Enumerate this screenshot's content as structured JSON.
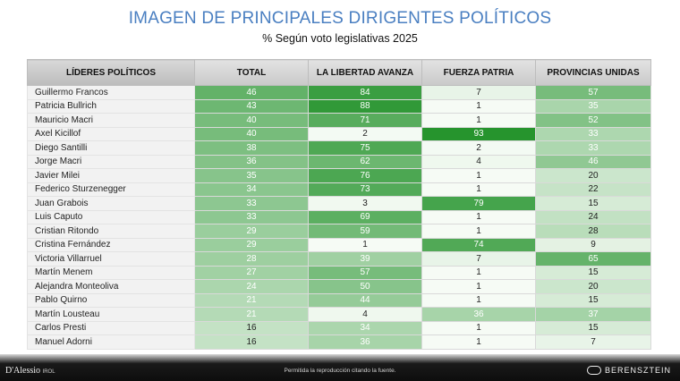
{
  "title": "IMAGEN DE PRINCIPALES DIRIGENTES POLÍTICOS",
  "subtitle": "% Según voto legislativas 2025",
  "headers": [
    "LÍDERES POLÍTICOS",
    "TOTAL",
    "LA LIBERTAD AVANZA",
    "FUERZA PATRIA",
    "PROVINCIAS UNIDAS"
  ],
  "rows": [
    {
      "name": "Guillermo Francos",
      "total": "46",
      "lla": "84",
      "fp": "7",
      "pu": "57"
    },
    {
      "name": "Patricia Bullrich",
      "total": "43",
      "lla": "88",
      "fp": "1",
      "pu": "35"
    },
    {
      "name": "Mauricio Macri",
      "total": "40",
      "lla": "71",
      "fp": "1",
      "pu": "52"
    },
    {
      "name": "Axel Kicillof",
      "total": "40",
      "lla": "2",
      "fp": "93",
      "pu": "33"
    },
    {
      "name": "Diego Santilli",
      "total": "38",
      "lla": "75",
      "fp": "2",
      "pu": "33"
    },
    {
      "name": "Jorge Macri",
      "total": "36",
      "lla": "62",
      "fp": "4",
      "pu": "46"
    },
    {
      "name": "Javier Milei",
      "total": "35",
      "lla": "76",
      "fp": "1",
      "pu": "20"
    },
    {
      "name": "Federico Sturzenegger",
      "total": "34",
      "lla": "73",
      "fp": "1",
      "pu": "22"
    },
    {
      "name": "Juan Grabois",
      "total": "33",
      "lla": "3",
      "fp": "79",
      "pu": "15"
    },
    {
      "name": "Luis Caputo",
      "total": "33",
      "lla": "69",
      "fp": "1",
      "pu": "24"
    },
    {
      "name": "Cristian Ritondo",
      "total": "29",
      "lla": "59",
      "fp": "1",
      "pu": "28"
    },
    {
      "name": "Cristina Fernández",
      "total": "29",
      "lla": "1",
      "fp": "74",
      "pu": "9"
    },
    {
      "name": "Victoria Villarruel",
      "total": "28",
      "lla": "39",
      "fp": "7",
      "pu": "65"
    },
    {
      "name": "Martín Menem",
      "total": "27",
      "lla": "57",
      "fp": "1",
      "pu": "15"
    },
    {
      "name": "Alejandra Monteoliva",
      "total": "24",
      "lla": "50",
      "fp": "1",
      "pu": "20"
    },
    {
      "name": "Pablo Quirno",
      "total": "21",
      "lla": "44",
      "fp": "1",
      "pu": "15"
    },
    {
      "name": "Martín Lousteau",
      "total": "21",
      "lla": "4",
      "fp": "36",
      "pu": "37"
    },
    {
      "name": "Carlos Presti",
      "total": "16",
      "lla": "34",
      "fp": "1",
      "pu": "15"
    },
    {
      "name": "Manuel Adorni",
      "total": "16",
      "lla": "36",
      "fp": "1",
      "pu": "7"
    }
  ],
  "footer": {
    "note": "Permitida la reproducción citando la fuente.",
    "logo_left": "D'Alessio",
    "logo_left_sub": "IROL",
    "logo_right": "BERENSZTEIN"
  }
}
